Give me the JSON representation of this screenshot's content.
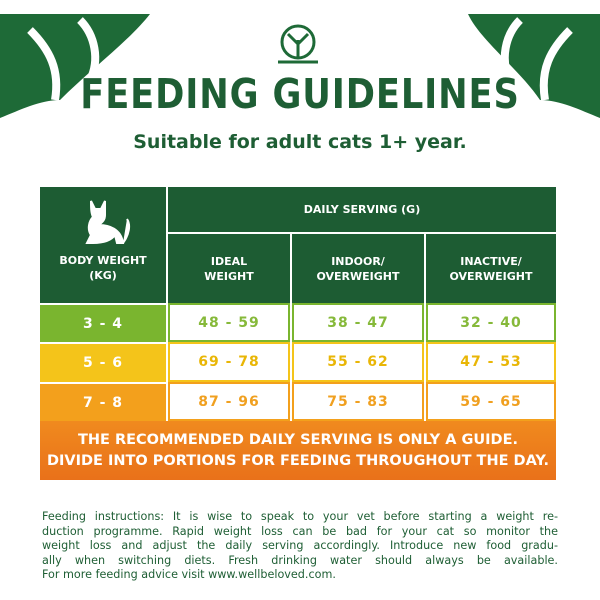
{
  "header": {
    "title": "FEEDING GUIDELINES",
    "subtitle": "Suitable for adult cats 1+ year."
  },
  "table": {
    "corner": "BODY WEIGHT (KG)",
    "group_header": "DAILY SERVING (G)",
    "columns": [
      "IDEAL WEIGHT",
      "INDOOR/ OVERWEIGHT",
      "INACTIVE/ OVERWEIGHT"
    ],
    "rows": [
      [
        "3 - 4",
        "48 - 59",
        "38 - 47",
        "32 - 40"
      ],
      [
        "5 - 6",
        "69 - 78",
        "55 - 62",
        "47 - 53"
      ],
      [
        "7 - 8",
        "87 - 96",
        "75 - 83",
        "59 - 65"
      ]
    ]
  },
  "note": [
    "THE RECOMMENDED DAILY SERVING IS ONLY A GUIDE.",
    "DIVIDE INTO PORTIONS FOR FEEDING THROUGHOUT THE DAY."
  ],
  "instructions": [
    "Feeding instructions: It is wise to speak to your vet before starting a weight re-",
    "duction programme. Rapid weight loss can be bad for your cat so monitor the",
    "weight loss and adjust the daily serving accordingly. Introduce new food gradu-",
    "ally when switching diets. Fresh drinking water should always be available.",
    "For more feeding advice visit www.wellbeloved.com."
  ]
}
